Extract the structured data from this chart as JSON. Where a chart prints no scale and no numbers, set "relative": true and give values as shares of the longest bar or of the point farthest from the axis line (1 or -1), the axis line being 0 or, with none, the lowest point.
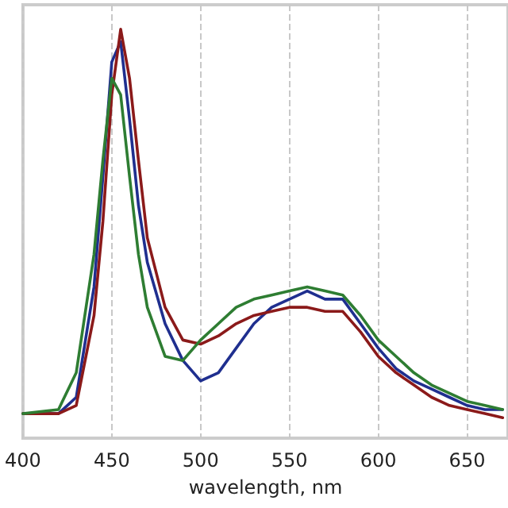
{
  "chart_data": {
    "type": "line",
    "relative": true,
    "xlabel": "wavelength, nm",
    "xlim": [
      400,
      673
    ],
    "xticks": [
      400,
      450,
      500,
      550,
      600,
      650
    ],
    "grid": "x",
    "tick_labels": "x",
    "marker": "none",
    "line_style": "solid",
    "x": [
      400,
      420,
      430,
      440,
      445,
      450,
      455,
      460,
      465,
      470,
      480,
      490,
      500,
      510,
      520,
      530,
      540,
      550,
      560,
      570,
      580,
      590,
      600,
      610,
      620,
      630,
      640,
      650,
      660,
      670
    ],
    "series": [
      {
        "color": "#1f2f8f",
        "values": [
          0.06,
          0.06,
          0.1,
          0.37,
          0.64,
          0.92,
          0.97,
          0.78,
          0.57,
          0.43,
          0.28,
          0.19,
          0.14,
          0.16,
          0.22,
          0.28,
          0.32,
          0.34,
          0.36,
          0.34,
          0.34,
          0.28,
          0.22,
          0.17,
          0.14,
          0.12,
          0.1,
          0.08,
          0.07,
          0.07
        ]
      },
      {
        "color": "#8b1a1a",
        "values": [
          0.06,
          0.06,
          0.08,
          0.3,
          0.53,
          0.84,
          1,
          0.88,
          0.68,
          0.49,
          0.32,
          0.24,
          0.23,
          0.25,
          0.28,
          0.3,
          0.31,
          0.32,
          0.32,
          0.31,
          0.31,
          0.26,
          0.2,
          0.16,
          0.13,
          0.1,
          0.08,
          0.07,
          0.06,
          0.05
        ]
      },
      {
        "color": "#2e7d32",
        "values": [
          0.06,
          0.07,
          0.16,
          0.45,
          0.68,
          0.88,
          0.84,
          0.64,
          0.45,
          0.32,
          0.2,
          0.19,
          0.24,
          0.28,
          0.32,
          0.34,
          0.35,
          0.36,
          0.37,
          0.36,
          0.35,
          0.3,
          0.24,
          0.2,
          0.16,
          0.13,
          0.11,
          0.09,
          0.08,
          0.07
        ]
      }
    ]
  }
}
